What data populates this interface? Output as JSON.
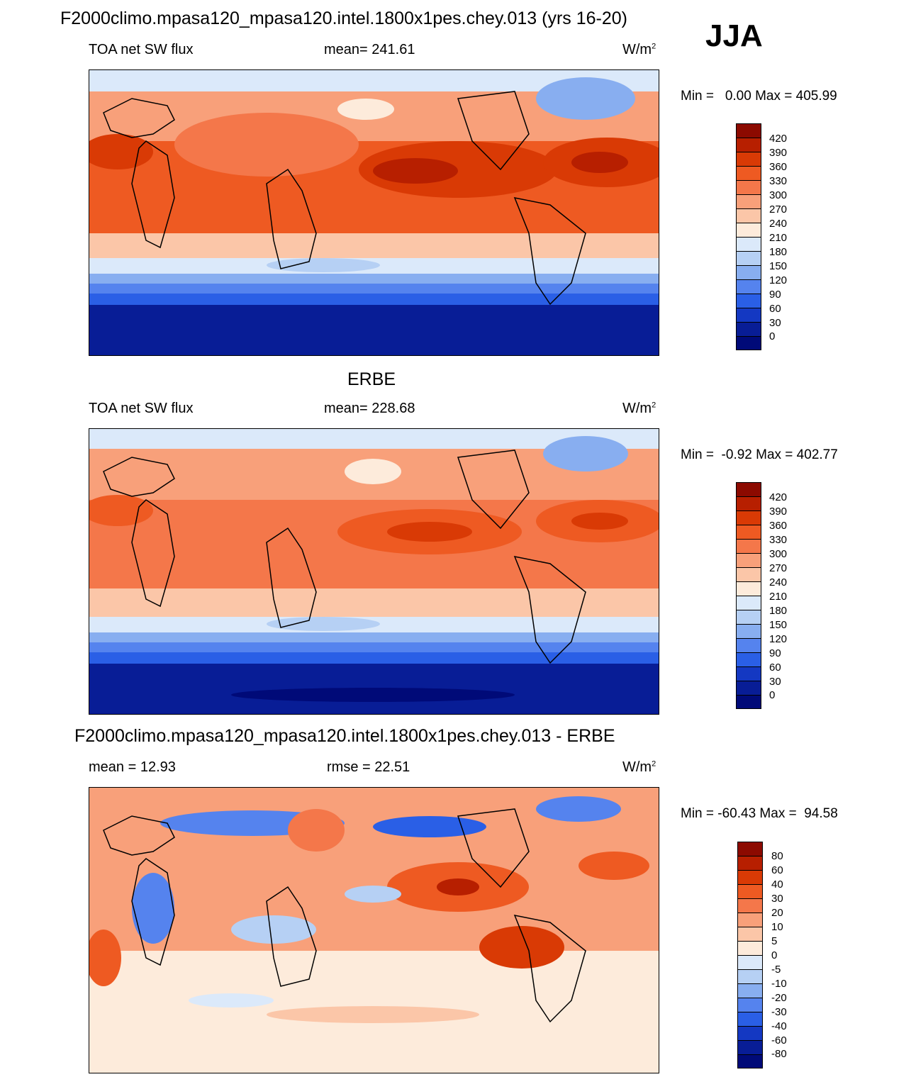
{
  "header": {
    "title": "F2000climo.mpasa120_mpasa120.intel.1800x1pes.chey.013 (yrs 16-20)",
    "season": "JJA"
  },
  "panels": [
    {
      "title": "",
      "left_label": "TOA net SW flux",
      "center_label": "mean= 241.61",
      "units": "W/m",
      "units_sup": "2",
      "minmax": "Min =   0.00 Max = 405.99",
      "levels": [
        "420",
        "390",
        "360",
        "330",
        "300",
        "270",
        "240",
        "210",
        "180",
        "150",
        "120",
        "90",
        "60",
        "30",
        "0"
      ]
    },
    {
      "title": "ERBE",
      "left_label": "TOA net SW flux",
      "center_label": "mean= 228.68",
      "units": "W/m",
      "units_sup": "2",
      "minmax": "Min =  -0.92 Max = 402.77",
      "levels": [
        "420",
        "390",
        "360",
        "330",
        "300",
        "270",
        "240",
        "210",
        "180",
        "150",
        "120",
        "90",
        "60",
        "30",
        "0"
      ]
    },
    {
      "title": "F2000climo.mpasa120_mpasa120.intel.1800x1pes.chey.013 - ERBE",
      "left_label": "mean =  12.93",
      "center_label": "rmse =  22.51",
      "units": "W/m",
      "units_sup": "2",
      "minmax": "Min = -60.43 Max =  94.58",
      "levels": [
        "80",
        "60",
        "40",
        "30",
        "20",
        "10",
        "5",
        "0",
        "-5",
        "-10",
        "-20",
        "-30",
        "-40",
        "-60",
        "-80"
      ]
    }
  ],
  "colorbar_colors": [
    "#8c0a00",
    "#b71f00",
    "#d93a05",
    "#ee5a22",
    "#f4774a",
    "#f8a07a",
    "#fbc6a8",
    "#fdebdb",
    "#dbe9fa",
    "#b6d0f4",
    "#88aef0",
    "#5583ee",
    "#2a5fe6",
    "#1438c2",
    "#081d96",
    "#000a78"
  ],
  "diff_colorbar_colors": [
    "#8c0a00",
    "#b71f00",
    "#d93a05",
    "#ee5a22",
    "#f4774a",
    "#f8a07a",
    "#fbc6a8",
    "#fdebdb",
    "#dbe9fa",
    "#b6d0f4",
    "#88aef0",
    "#5583ee",
    "#2a5fe6",
    "#1438c2",
    "#081d96",
    "#000a78"
  ]
}
